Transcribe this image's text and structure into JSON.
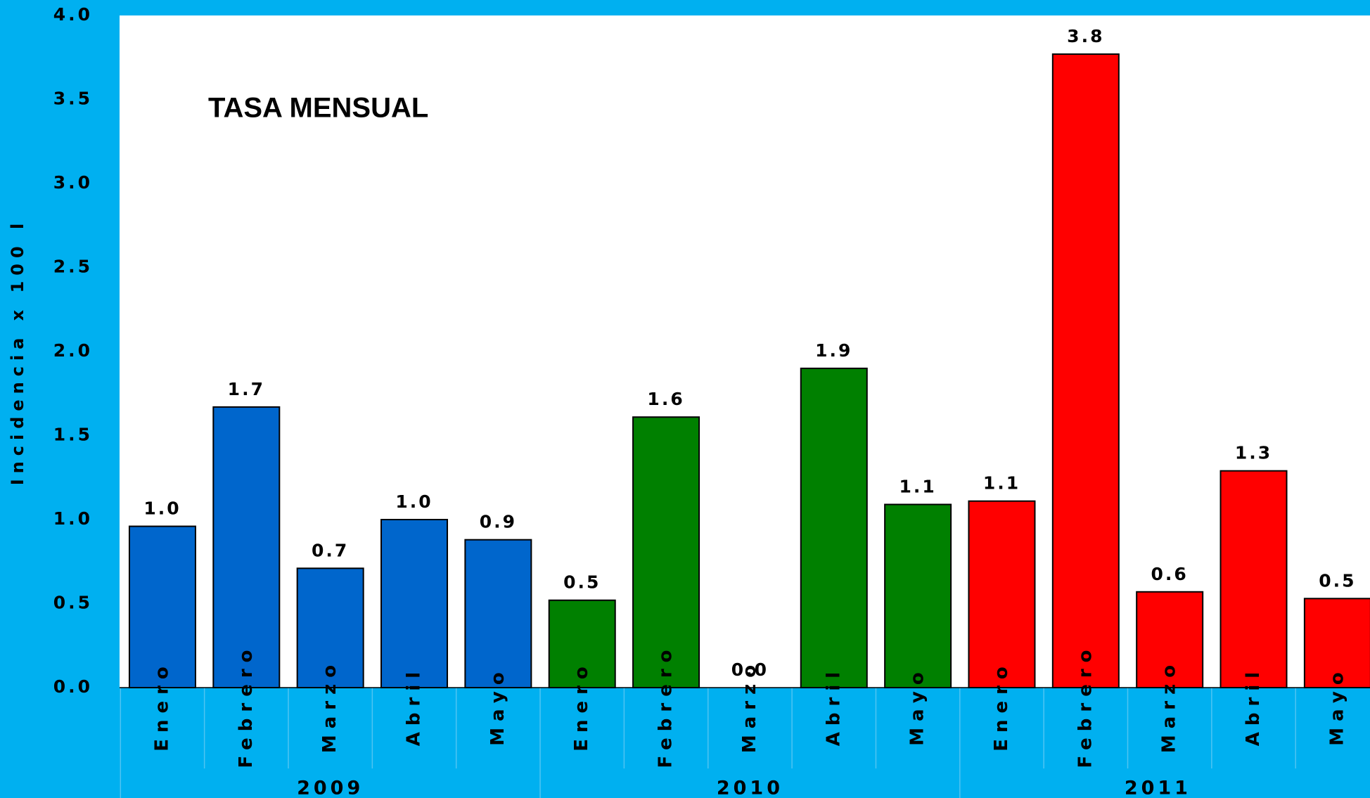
{
  "chart_data": {
    "type": "bar",
    "title": "TASA MENSUAL",
    "y_label": "Incidencia x 100 l",
    "ylim": [
      0,
      4
    ],
    "yticks": [
      {
        "value": 0,
        "label": "0.0"
      },
      0.5,
      {
        "value": 1,
        "label": "1.0"
      },
      1.5,
      {
        "value": 2,
        "label": "2.0"
      },
      2.5,
      {
        "value": 3,
        "label": "3.0"
      },
      3.5,
      {
        "value": 4,
        "label": "4.0"
      }
    ],
    "groups": [
      {
        "name": "2009",
        "color": "#0066cc",
        "categories": [
          "Enero",
          "Febrero",
          "Marzo",
          "Abril",
          "Mayo"
        ],
        "values": [
          0.96,
          1.67,
          0.71,
          1.0,
          0.88
        ],
        "value_labels": [
          "1.0",
          "1.7",
          "0.7",
          "1.0",
          "0.9"
        ]
      },
      {
        "name": "2010",
        "color": "#008000",
        "categories": [
          "Enero",
          "Febrero",
          "Marzo",
          "Abril",
          "Mayo"
        ],
        "values": [
          0.52,
          1.61,
          0,
          1.9,
          1.09
        ],
        "value_labels": [
          "0.5",
          "1.6",
          "0.0",
          "1.9",
          "1.1"
        ]
      },
      {
        "name": "2011",
        "color": "#ff0000",
        "categories": [
          "Enero",
          "Febrero",
          "Marzo",
          "Abril",
          "Mayo"
        ],
        "values": [
          1.11,
          3.77,
          0.57,
          1.29,
          0.53
        ],
        "value_labels": [
          "1.1",
          "3.8",
          "0.6",
          "1.3",
          "0.5"
        ]
      }
    ]
  }
}
